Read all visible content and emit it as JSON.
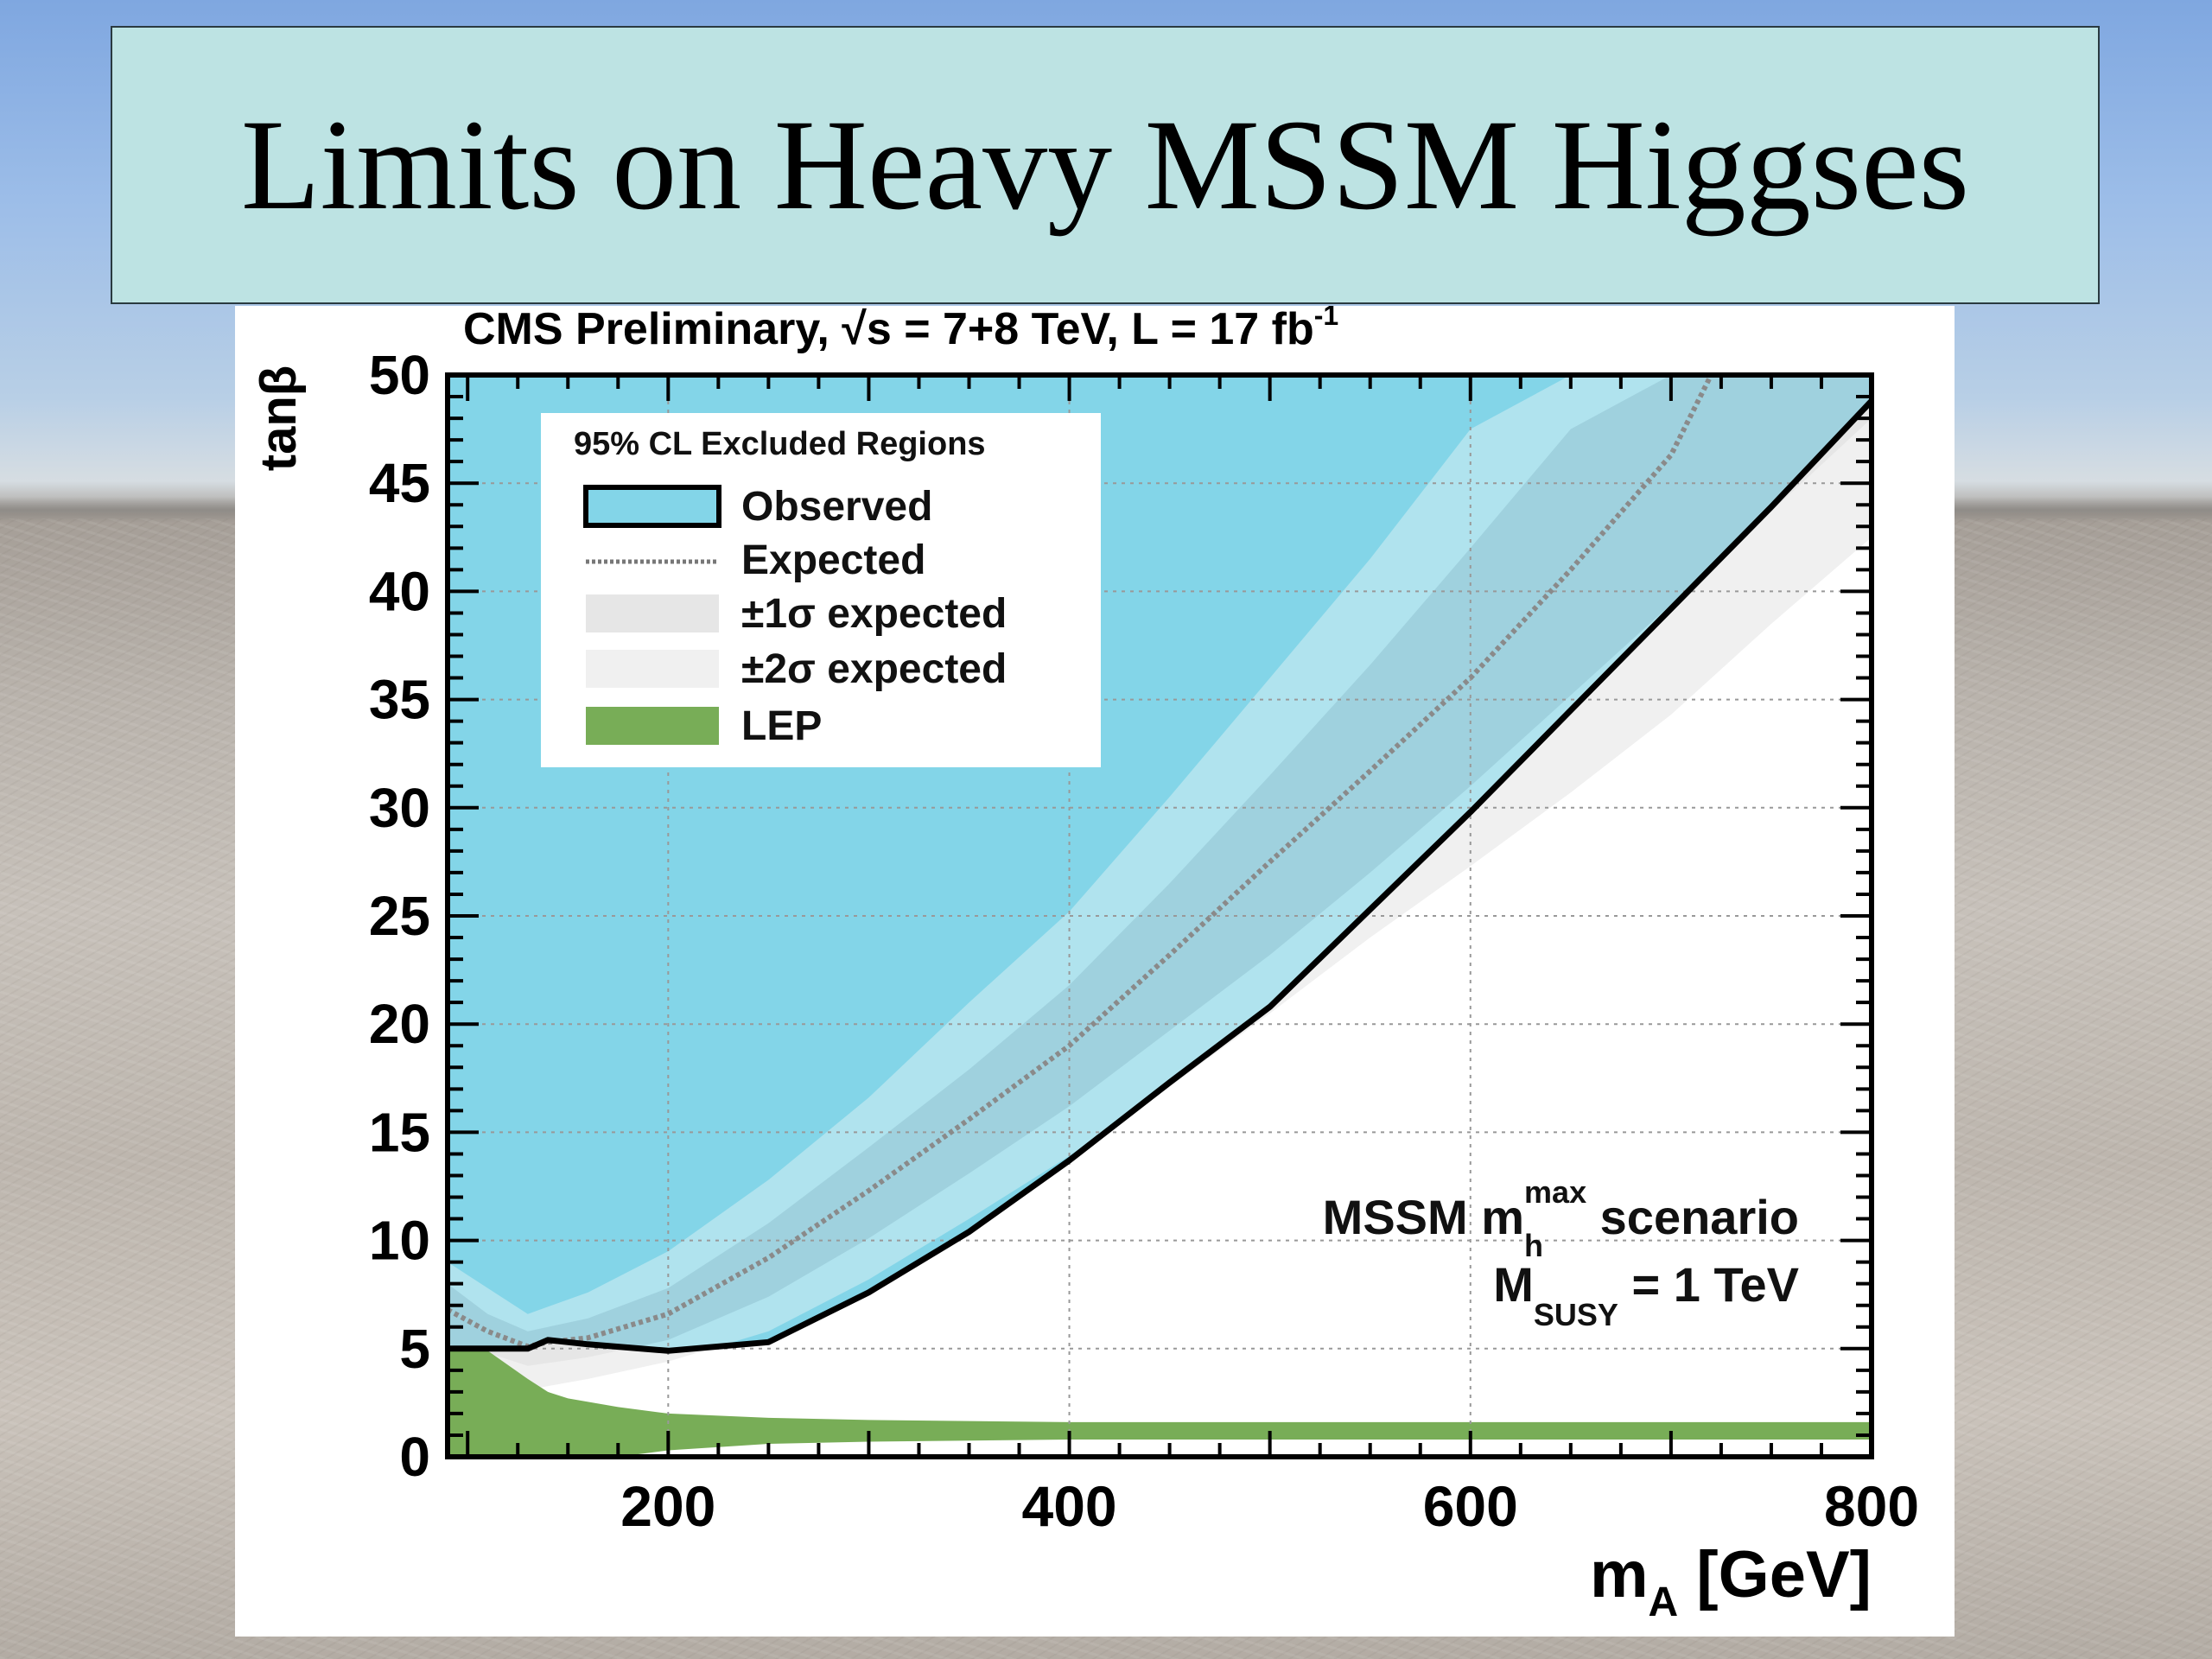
{
  "slide": {
    "title": "Limits on Heavy MSSM Higgses"
  },
  "chart_data": {
    "type": "area",
    "header": "CMS Preliminary, √s = 7+8 TeV, L = 17 fb",
    "header_sup": "-1",
    "xlabel_main": "m",
    "xlabel_sub": "A",
    "xlabel_rest": " [GeV]",
    "ylabel": "tanβ",
    "xlim": [
      90,
      800
    ],
    "ylim": [
      0,
      50
    ],
    "xticks": [
      200,
      400,
      600,
      800
    ],
    "yticks": [
      0,
      5,
      10,
      15,
      20,
      25,
      30,
      35,
      40,
      45,
      50
    ],
    "grid": true,
    "legend_placement": "top-left",
    "legend": {
      "title": "95% CL Excluded Regions",
      "items": [
        {
          "label": "Observed",
          "kind": "observed"
        },
        {
          "label": "Expected",
          "kind": "expected"
        },
        {
          "label": "±1σ  expected",
          "kind": "band1"
        },
        {
          "label": "±2σ  expected",
          "kind": "band2"
        },
        {
          "label": "LEP",
          "kind": "lep"
        }
      ]
    },
    "annotation": {
      "line1_pre": "MSSM m",
      "line1_sub": "h",
      "line1_sup": "max",
      "line1_post": " scenario",
      "line2_pre": "M",
      "line2_sub": "SUSY",
      "line2_post": " = 1 TeV"
    },
    "colors": {
      "observed_fill": "#83d5e8",
      "band2": "#b0e3ee",
      "band1": "#9fd1de",
      "band2_outside": "#f0f0f0",
      "band1_outside": "#e6e6e6",
      "lep": "#78ad57",
      "line": "#000000"
    },
    "series": [
      {
        "name": "Observed",
        "x": [
          90,
          110,
          130,
          140,
          160,
          200,
          250,
          300,
          350,
          400,
          450,
          500,
          550,
          600,
          650,
          700,
          750,
          800
        ],
        "y": [
          5.0,
          5.0,
          5.0,
          5.4,
          5.2,
          4.9,
          5.3,
          7.6,
          10.4,
          13.7,
          17.3,
          20.8,
          25.3,
          29.8,
          34.5,
          39.2,
          43.9,
          48.8
        ]
      },
      {
        "name": "Expected",
        "x": [
          90,
          110,
          130,
          140,
          160,
          200,
          250,
          300,
          350,
          400,
          450,
          500,
          550,
          600,
          650,
          700,
          720
        ],
        "y": [
          6.8,
          5.8,
          5.1,
          5.3,
          5.5,
          6.6,
          9.2,
          12.3,
          15.6,
          19.0,
          23.2,
          27.5,
          31.7,
          36.0,
          41.0,
          46.3,
          50.0
        ]
      }
    ],
    "band_1sigma": {
      "x": [
        90,
        110,
        130,
        160,
        200,
        250,
        300,
        350,
        400,
        450,
        500,
        550,
        600,
        650,
        700,
        750,
        800
      ],
      "lower": [
        5.2,
        4.8,
        4.2,
        4.6,
        5.4,
        7.4,
        10.1,
        13.1,
        16.2,
        19.7,
        23.2,
        27.0,
        31.0,
        35.2,
        39.4,
        43.7,
        48.0
      ],
      "upper": [
        8.0,
        6.6,
        5.8,
        6.4,
        7.8,
        10.8,
        14.3,
        17.9,
        21.8,
        26.5,
        31.5,
        36.6,
        42.0,
        47.5,
        50.0,
        50.0,
        50.0
      ]
    },
    "band_2sigma": {
      "x": [
        90,
        110,
        130,
        160,
        200,
        250,
        300,
        350,
        400,
        450,
        500,
        550,
        600,
        650,
        700,
        750,
        800
      ],
      "lower": [
        3.4,
        3.1,
        3.1,
        3.6,
        4.4,
        5.8,
        8.2,
        11.0,
        13.9,
        17.1,
        20.5,
        24.0,
        27.3,
        30.7,
        34.3,
        38.5,
        42.5
      ],
      "upper": [
        9.0,
        7.8,
        6.6,
        7.6,
        9.5,
        12.8,
        16.6,
        21.0,
        25.2,
        30.5,
        36.0,
        41.5,
        47.5,
        50.0,
        50.0,
        50.0,
        50.0
      ]
    },
    "lep": {
      "x": [
        90,
        110,
        130,
        140,
        150,
        175,
        200,
        250,
        300,
        400,
        500,
        600,
        700,
        800
      ],
      "lower": [
        0,
        0,
        0,
        0,
        0,
        0,
        0.3,
        0.6,
        0.7,
        0.8,
        0.8,
        0.8,
        0.8,
        0.8
      ],
      "upper": [
        5.1,
        4.9,
        3.6,
        3.0,
        2.7,
        2.3,
        2.0,
        1.8,
        1.7,
        1.6,
        1.6,
        1.6,
        1.6,
        1.6
      ]
    },
    "observed_region": {
      "x": [
        90,
        110,
        130,
        140,
        160,
        200,
        250,
        300,
        350,
        400,
        450,
        500,
        550,
        600,
        650,
        700,
        750,
        800
      ],
      "upper": [
        50,
        50,
        50,
        50,
        50,
        50,
        50,
        50,
        50,
        50,
        50,
        50,
        50,
        50,
        50,
        50,
        50,
        50
      ],
      "lower": [
        5.0,
        5.0,
        5.0,
        5.4,
        5.2,
        4.9,
        5.3,
        7.6,
        10.4,
        13.7,
        17.3,
        20.8,
        25.3,
        29.8,
        34.5,
        39.2,
        43.9,
        48.8
      ]
    }
  }
}
